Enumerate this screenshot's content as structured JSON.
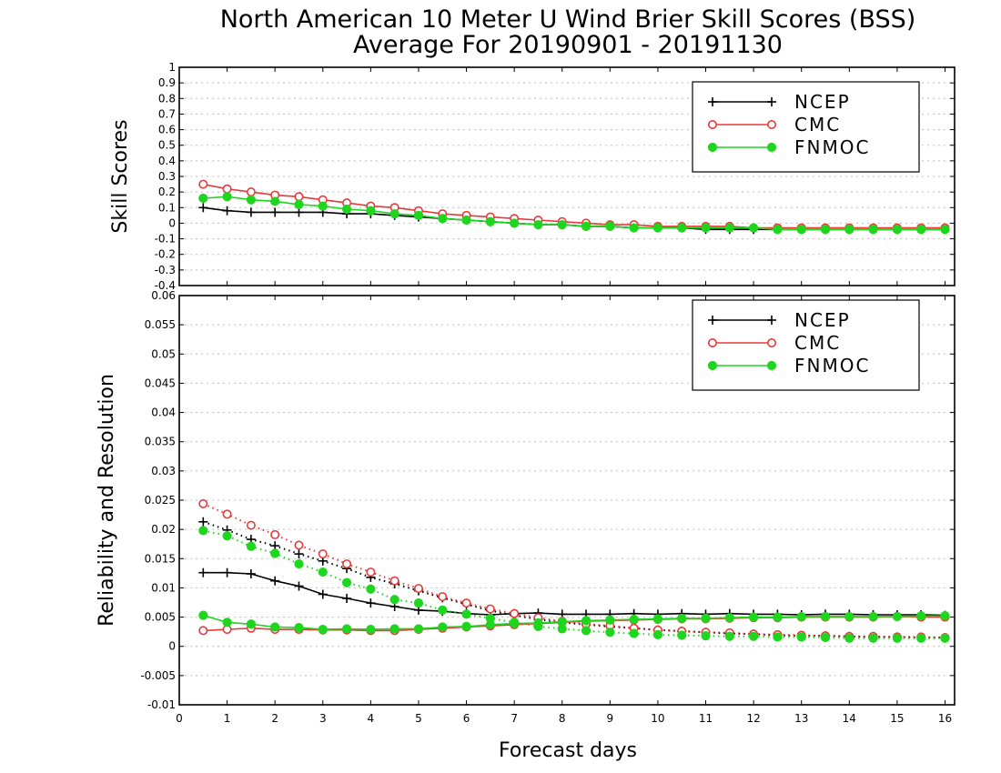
{
  "chart_data": {
    "title": [
      "North American 10 Meter U Wind Brier Skill Scores (BSS)",
      "Average For 20190901 - 20191130"
    ],
    "xlabel": "Forecast days",
    "x_ticks": [
      "0",
      "1",
      "2",
      "3",
      "4",
      "5",
      "6",
      "7",
      "8",
      "9",
      "10",
      "11",
      "12",
      "13",
      "14",
      "15",
      "16"
    ],
    "xlim": [
      0,
      16.2
    ],
    "x": [
      0.5,
      1,
      1.5,
      2,
      2.5,
      3,
      3.5,
      4,
      4.5,
      5,
      5.5,
      6,
      6.5,
      7,
      7.5,
      8,
      8.5,
      9,
      9.5,
      10,
      10.5,
      11,
      11.5,
      12,
      12.5,
      13,
      13.5,
      14,
      14.5,
      15,
      15.5,
      16
    ],
    "colors": {
      "NCEP": "#000000",
      "CMC": "#e8393a",
      "FNMOC": "#1fd61f"
    },
    "panels": [
      {
        "type": "line",
        "ylabel": "Skill Scores",
        "ylim": [
          -0.4,
          1
        ],
        "y_ticks": [
          "1",
          "0.9",
          "0.8",
          "0.7",
          "0.6",
          "0.5",
          "0.4",
          "0.3",
          "0.2",
          "0.1",
          "0",
          "-0.1",
          "-0.2",
          "-0.3",
          "-0.4"
        ],
        "y_tick_values": [
          1,
          0.9,
          0.8,
          0.7,
          0.6,
          0.5,
          0.4,
          0.3,
          0.2,
          0.1,
          0,
          -0.1,
          -0.2,
          -0.3,
          -0.4
        ],
        "grid": true,
        "legend": "top-right",
        "legend_labels": [
          "NCEP",
          "CMC",
          "FNMOC"
        ],
        "series": [
          {
            "name": "NCEP",
            "style": "solid",
            "marker": "plus",
            "values": [
              0.1,
              0.08,
              0.07,
              0.07,
              0.07,
              0.07,
              0.06,
              0.06,
              0.05,
              0.04,
              0.03,
              0.02,
              0.01,
              0.0,
              -0.01,
              -0.01,
              -0.02,
              -0.02,
              -0.03,
              -0.03,
              -0.03,
              -0.04,
              -0.04,
              -0.04,
              -0.04,
              -0.04,
              -0.04,
              -0.04,
              -0.04,
              -0.04,
              -0.04,
              -0.04
            ]
          },
          {
            "name": "CMC",
            "style": "solid",
            "marker": "open-circle",
            "values": [
              0.25,
              0.22,
              0.2,
              0.18,
              0.17,
              0.15,
              0.13,
              0.11,
              0.1,
              0.08,
              0.06,
              0.05,
              0.04,
              0.03,
              0.02,
              0.01,
              0.0,
              -0.01,
              -0.01,
              -0.02,
              -0.02,
              -0.02,
              -0.02,
              -0.03,
              -0.03,
              -0.03,
              -0.03,
              -0.03,
              -0.03,
              -0.03,
              -0.03,
              -0.03
            ]
          },
          {
            "name": "FNMOC",
            "style": "solid",
            "marker": "filled-circle",
            "values": [
              0.16,
              0.17,
              0.15,
              0.14,
              0.12,
              0.11,
              0.09,
              0.08,
              0.06,
              0.05,
              0.03,
              0.02,
              0.01,
              0.0,
              -0.01,
              -0.01,
              -0.02,
              -0.02,
              -0.03,
              -0.03,
              -0.03,
              -0.03,
              -0.03,
              -0.03,
              -0.04,
              -0.04,
              -0.04,
              -0.04,
              -0.04,
              -0.04,
              -0.04,
              -0.04
            ]
          }
        ]
      },
      {
        "type": "line",
        "ylabel": "Reliability and Resolution",
        "ylim": [
          -0.01,
          0.06
        ],
        "y_ticks": [
          "0.06",
          "0.055",
          "0.05",
          "0.045",
          "0.04",
          "0.035",
          "0.03",
          "0.025",
          "0.02",
          "0.015",
          "0.01",
          "0.005",
          "0",
          "-0.005",
          "-0.01"
        ],
        "y_tick_values": [
          0.06,
          0.055,
          0.05,
          0.045,
          0.04,
          0.035,
          0.03,
          0.025,
          0.02,
          0.015,
          0.01,
          0.005,
          0,
          -0.005,
          -0.01
        ],
        "grid": true,
        "legend": "top-right",
        "legend_labels": [
          "NCEP",
          "CMC",
          "FNMOC"
        ],
        "series": [
          {
            "name": "NCEP",
            "component": "resolution",
            "style": "solid",
            "marker": "plus",
            "values": [
              0.0126,
              0.0126,
              0.0124,
              0.0112,
              0.0103,
              0.0089,
              0.0082,
              0.0074,
              0.0068,
              0.0062,
              0.006,
              0.0056,
              0.0054,
              0.0056,
              0.0057,
              0.0055,
              0.0055,
              0.0055,
              0.0056,
              0.0055,
              0.0056,
              0.0055,
              0.0056,
              0.0055,
              0.0055,
              0.0054,
              0.0055,
              0.0055,
              0.0054,
              0.0054,
              0.0054,
              0.0053
            ]
          },
          {
            "name": "NCEP",
            "component": "reliability",
            "style": "dotted",
            "marker": "plus",
            "values": [
              0.0213,
              0.0199,
              0.0183,
              0.0172,
              0.0158,
              0.0146,
              0.0133,
              0.0118,
              0.0107,
              0.0095,
              0.0083,
              0.0072,
              0.0061,
              0.0053,
              0.0046,
              0.0041,
              0.0037,
              0.0034,
              0.0031,
              0.0028,
              0.0026,
              0.0024,
              0.0022,
              0.0021,
              0.0019,
              0.0018,
              0.0018,
              0.0017,
              0.0016,
              0.0016,
              0.0015,
              0.0015
            ]
          },
          {
            "name": "CMC",
            "component": "resolution",
            "style": "solid",
            "marker": "open-circle",
            "values": [
              0.0027,
              0.0029,
              0.0031,
              0.0029,
              0.0029,
              0.0028,
              0.0028,
              0.0027,
              0.0027,
              0.0029,
              0.0031,
              0.0033,
              0.0035,
              0.0037,
              0.0039,
              0.0041,
              0.0043,
              0.0044,
              0.0045,
              0.0046,
              0.0047,
              0.0047,
              0.0048,
              0.0049,
              0.0049,
              0.005,
              0.005,
              0.005,
              0.005,
              0.0051,
              0.005,
              0.005
            ]
          },
          {
            "name": "CMC",
            "component": "reliability",
            "style": "dotted",
            "marker": "open-circle",
            "values": [
              0.0244,
              0.0226,
              0.0207,
              0.0191,
              0.0173,
              0.0158,
              0.0141,
              0.0127,
              0.0112,
              0.0099,
              0.0085,
              0.0074,
              0.0064,
              0.0056,
              0.0049,
              0.0043,
              0.0038,
              0.0035,
              0.0031,
              0.0028,
              0.0026,
              0.0024,
              0.0023,
              0.0021,
              0.002,
              0.0019,
              0.0018,
              0.0017,
              0.0017,
              0.0016,
              0.0016,
              0.0015
            ]
          },
          {
            "name": "FNMOC",
            "component": "resolution",
            "style": "solid",
            "marker": "filled-circle",
            "values": [
              0.0053,
              0.0041,
              0.0038,
              0.0033,
              0.0032,
              0.0029,
              0.003,
              0.0029,
              0.003,
              0.003,
              0.0033,
              0.0034,
              0.0037,
              0.0039,
              0.004,
              0.0042,
              0.0044,
              0.0045,
              0.0046,
              0.0047,
              0.0048,
              0.0048,
              0.0049,
              0.005,
              0.005,
              0.0051,
              0.0051,
              0.0051,
              0.0051,
              0.0051,
              0.0052,
              0.0052
            ]
          },
          {
            "name": "FNMOC",
            "component": "reliability",
            "style": "dotted",
            "marker": "filled-circle",
            "values": [
              0.0198,
              0.0189,
              0.0171,
              0.0159,
              0.0141,
              0.0127,
              0.0109,
              0.0098,
              0.008,
              0.0074,
              0.0062,
              0.0055,
              0.0048,
              0.0041,
              0.0034,
              0.003,
              0.0027,
              0.0024,
              0.0022,
              0.002,
              0.0019,
              0.0018,
              0.0017,
              0.0017,
              0.0016,
              0.0016,
              0.0015,
              0.0014,
              0.0014,
              0.0014,
              0.0014,
              0.0014
            ]
          }
        ]
      }
    ]
  }
}
